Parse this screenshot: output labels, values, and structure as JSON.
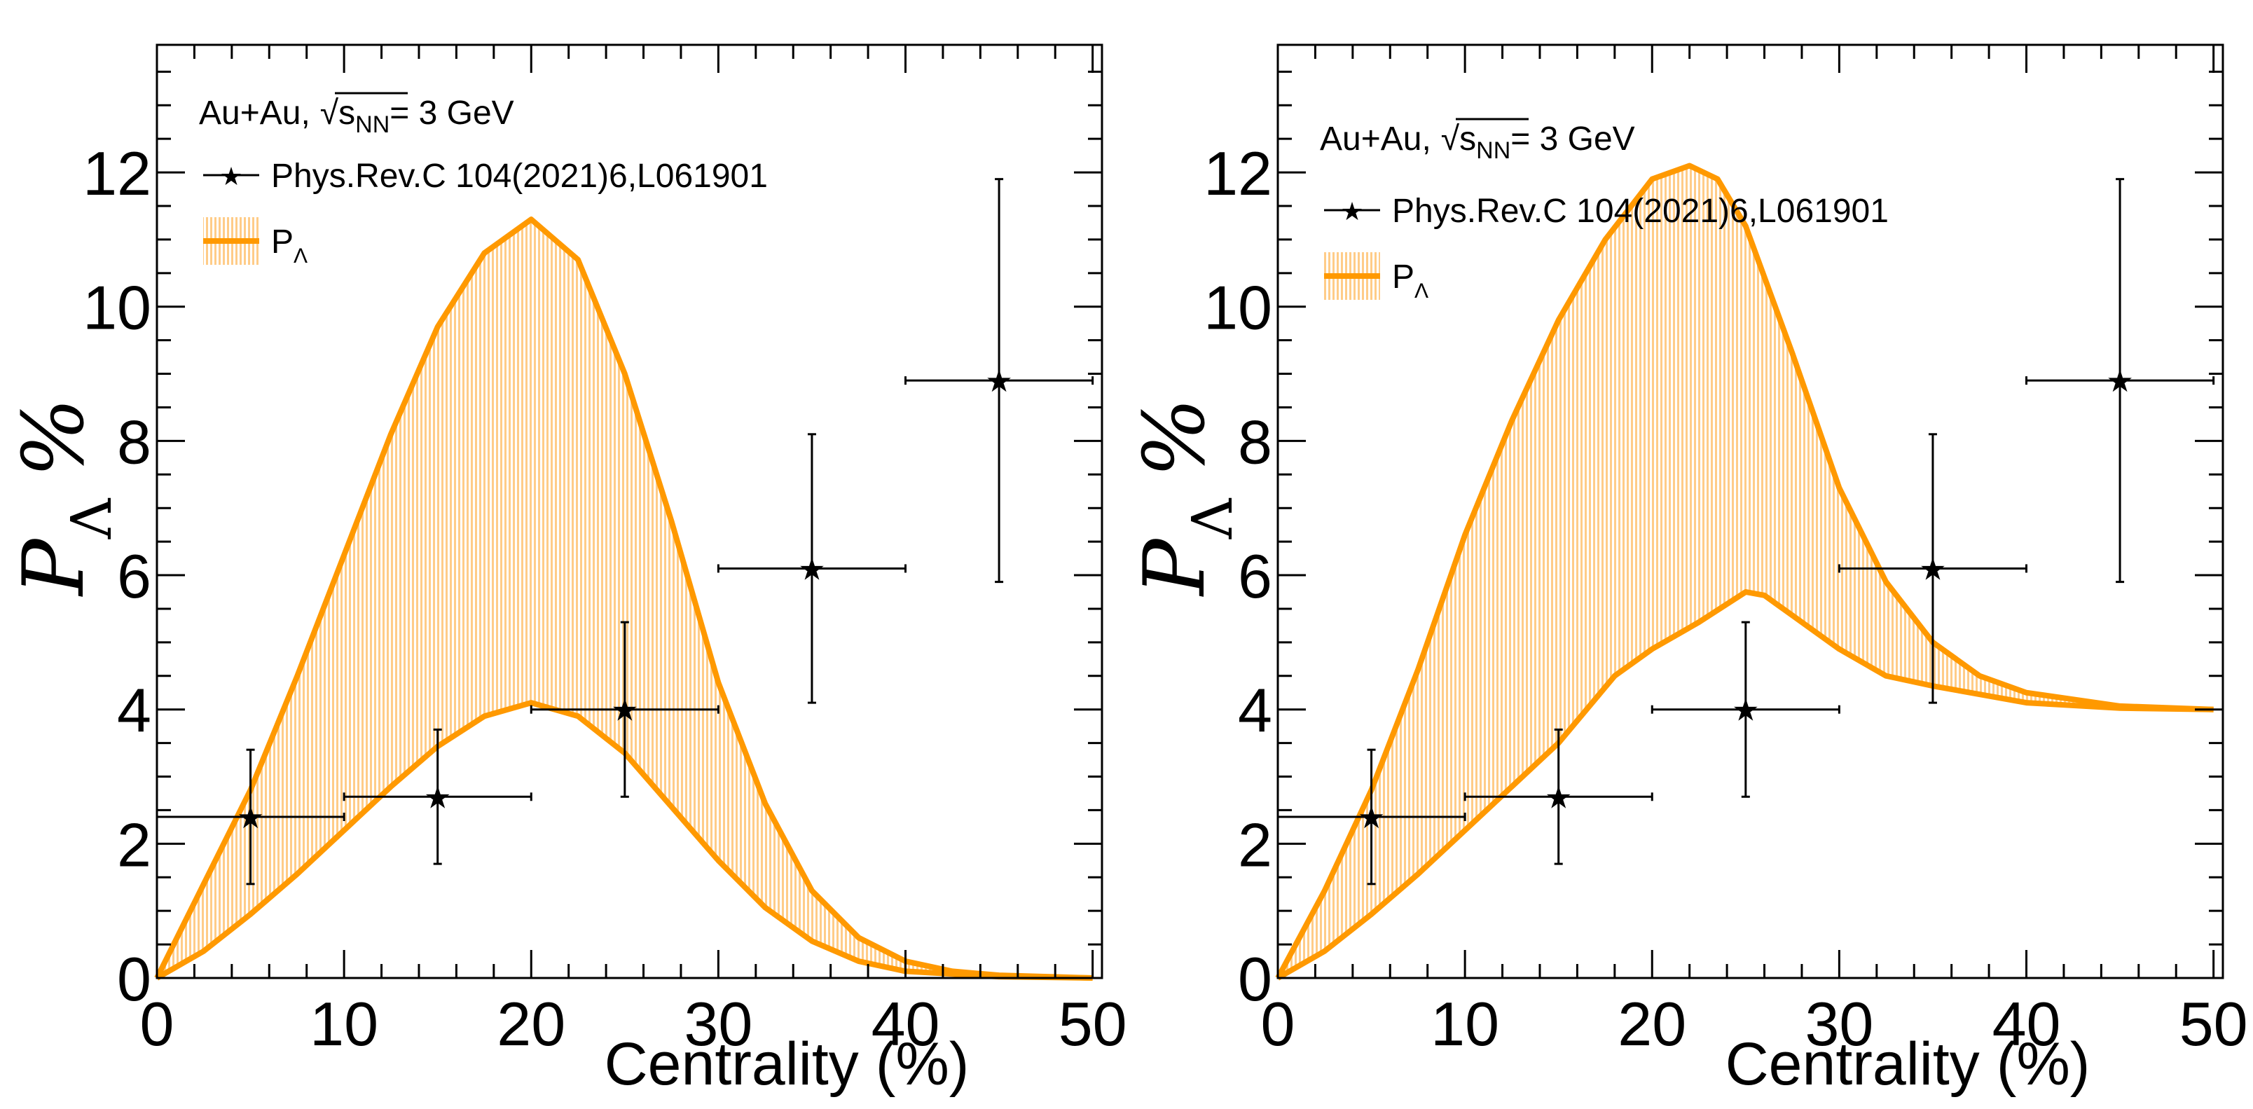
{
  "chart_data": [
    {
      "type": "line",
      "xlabel": "Centrality (%)",
      "ylabel": "P",
      "ylabel_sub": "Λ",
      "ylabel_suffix": "%",
      "xlim": [
        0,
        50.5
      ],
      "ylim": [
        0,
        13.9
      ],
      "xticks": [
        0,
        10,
        20,
        30,
        40,
        50
      ],
      "yticks": [
        0,
        2,
        4,
        6,
        8,
        10,
        12
      ],
      "annotation": {
        "main": "Au+Au,",
        "sqrt_s": "s",
        "sqrt_sub": "NN",
        "rest": "= 3 GeV"
      },
      "legend": {
        "data_label": "Phys.Rev.C 104(2021)6,L061901",
        "band_label": "P",
        "band_sub": "Λ",
        "placement": "top-left"
      },
      "data_points": [
        {
          "x": 5,
          "xerr": 5,
          "y": 2.4,
          "yerr_low": 1.0,
          "yerr_high": 1.0
        },
        {
          "x": 15,
          "xerr": 5,
          "y": 2.7,
          "yerr_low": 1.0,
          "yerr_high": 1.0
        },
        {
          "x": 25,
          "xerr": 5,
          "y": 4.0,
          "yerr_low": 1.3,
          "yerr_high": 1.3
        },
        {
          "x": 35,
          "xerr": 5,
          "y": 6.1,
          "yerr_low": 2.0,
          "yerr_high": 2.0
        },
        {
          "x": 45,
          "xerr": 5,
          "y": 8.9,
          "yerr_low": 3.0,
          "yerr_high": 3.0
        }
      ],
      "band_upper": {
        "x": [
          0,
          2.5,
          5,
          7.5,
          10,
          12.5,
          15,
          17.5,
          20,
          22.5,
          25,
          27.5,
          30,
          32.5,
          35,
          37.5,
          40,
          42.5,
          45,
          50
        ],
        "y": [
          0,
          1.4,
          2.8,
          4.5,
          6.3,
          8.1,
          9.7,
          10.8,
          11.3,
          10.7,
          9.0,
          6.8,
          4.4,
          2.6,
          1.3,
          0.6,
          0.25,
          0.1,
          0.04,
          0
        ]
      },
      "band_lower": {
        "x": [
          0,
          2.5,
          5,
          7.5,
          10,
          12.5,
          15,
          17.5,
          20,
          22.5,
          25,
          27.5,
          30,
          32.5,
          35,
          37.5,
          40,
          45,
          50
        ],
        "y": [
          0,
          0.4,
          0.95,
          1.55,
          2.2,
          2.85,
          3.45,
          3.9,
          4.1,
          3.9,
          3.35,
          2.55,
          1.75,
          1.05,
          0.55,
          0.25,
          0.1,
          0.02,
          0
        ]
      },
      "colors": {
        "band": "#ff9900",
        "fill": "#ffcc88",
        "data": "#000000"
      }
    },
    {
      "type": "line",
      "xlabel": "Centrality (%)",
      "ylabel": "P",
      "ylabel_sub": "Λ",
      "ylabel_suffix": "%",
      "xlim": [
        0,
        50.5
      ],
      "ylim": [
        0,
        13.9
      ],
      "xticks": [
        0,
        10,
        20,
        30,
        40,
        50
      ],
      "yticks": [
        0,
        2,
        4,
        6,
        8,
        10,
        12
      ],
      "annotation": {
        "main": "Au+Au,",
        "sqrt_s": "s",
        "sqrt_sub": "NN",
        "rest": "= 3 GeV"
      },
      "legend": {
        "data_label": "Phys.Rev.C 104(2021)6,L061901",
        "band_label": "P",
        "band_sub": "Λ",
        "placement": "top-left"
      },
      "data_points": [
        {
          "x": 5,
          "xerr": 5,
          "y": 2.4,
          "yerr_low": 1.0,
          "yerr_high": 1.0
        },
        {
          "x": 15,
          "xerr": 5,
          "y": 2.7,
          "yerr_low": 1.0,
          "yerr_high": 1.0
        },
        {
          "x": 25,
          "xerr": 5,
          "y": 4.0,
          "yerr_low": 1.3,
          "yerr_high": 1.3
        },
        {
          "x": 35,
          "xerr": 5,
          "y": 6.1,
          "yerr_low": 2.0,
          "yerr_high": 2.0
        },
        {
          "x": 45,
          "xerr": 5,
          "y": 8.9,
          "yerr_low": 3.0,
          "yerr_high": 3.0
        }
      ],
      "band_upper": {
        "x": [
          0,
          2.5,
          5,
          7.5,
          10,
          12.5,
          15,
          17.5,
          20,
          22,
          23.5,
          25,
          27.5,
          30,
          32.5,
          35,
          37.5,
          40,
          45,
          50
        ],
        "y": [
          0,
          1.3,
          2.8,
          4.6,
          6.6,
          8.3,
          9.8,
          11.0,
          11.9,
          12.1,
          11.9,
          11.2,
          9.3,
          7.3,
          5.9,
          5.0,
          4.5,
          4.25,
          4.05,
          4.0
        ]
      },
      "band_lower": {
        "x": [
          0,
          2.5,
          5,
          7.5,
          10,
          12.5,
          15,
          18,
          20,
          22.5,
          25,
          26,
          27.5,
          30,
          32.5,
          35,
          40,
          45,
          50
        ],
        "y": [
          0,
          0.4,
          0.95,
          1.55,
          2.2,
          2.85,
          3.5,
          4.5,
          4.9,
          5.3,
          5.75,
          5.7,
          5.4,
          4.9,
          4.5,
          4.35,
          4.1,
          4.02,
          4.0
        ]
      },
      "colors": {
        "band": "#ff9900",
        "fill": "#ffcc88",
        "data": "#000000"
      }
    }
  ]
}
